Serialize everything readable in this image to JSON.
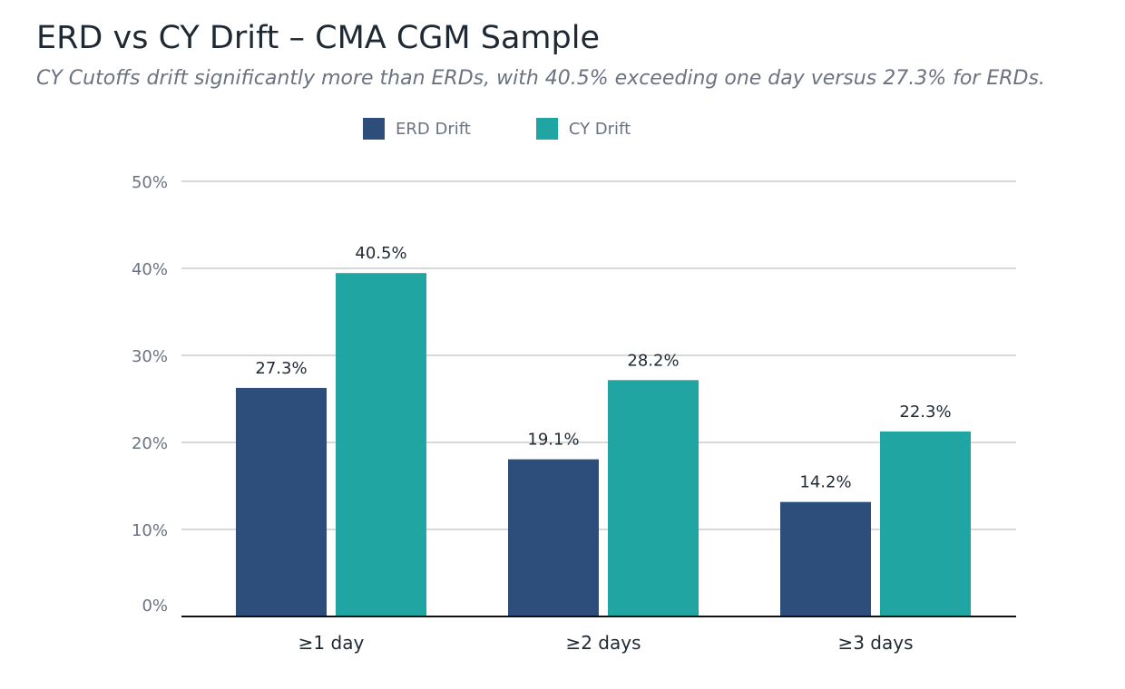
{
  "colors": {
    "erd": "#2d4e7a",
    "cy": "#20a5a2",
    "grid": "#cccccc",
    "axis": "#111111"
  },
  "chart_data": {
    "type": "bar",
    "title": "ERD vs CY Drift – CMA CGM Sample",
    "subtitle": "CY Cutoffs drift significantly more than ERDs, with 40.5% exceeding one day versus 27.3% for ERDs.",
    "categories": [
      "≥1 day",
      "≥2 days",
      "≥3 days"
    ],
    "series": [
      {
        "name": "ERD Drift",
        "values": [
          27.3,
          19.1,
          14.2
        ],
        "labels": [
          "27.3%",
          "19.1%",
          "14.2%"
        ]
      },
      {
        "name": "CY Drift",
        "values": [
          40.5,
          28.2,
          22.3
        ],
        "labels": [
          "40.5%",
          "28.2%",
          "22.3%"
        ]
      }
    ],
    "ylim": [
      0,
      50
    ],
    "yticks": [
      0,
      10,
      20,
      30,
      40,
      50
    ],
    "ytick_labels": [
      "0%",
      "10%",
      "20%",
      "30%",
      "40%",
      "50%"
    ],
    "xlabel": "",
    "ylabel": "",
    "grid": true,
    "legend": "top-left"
  }
}
